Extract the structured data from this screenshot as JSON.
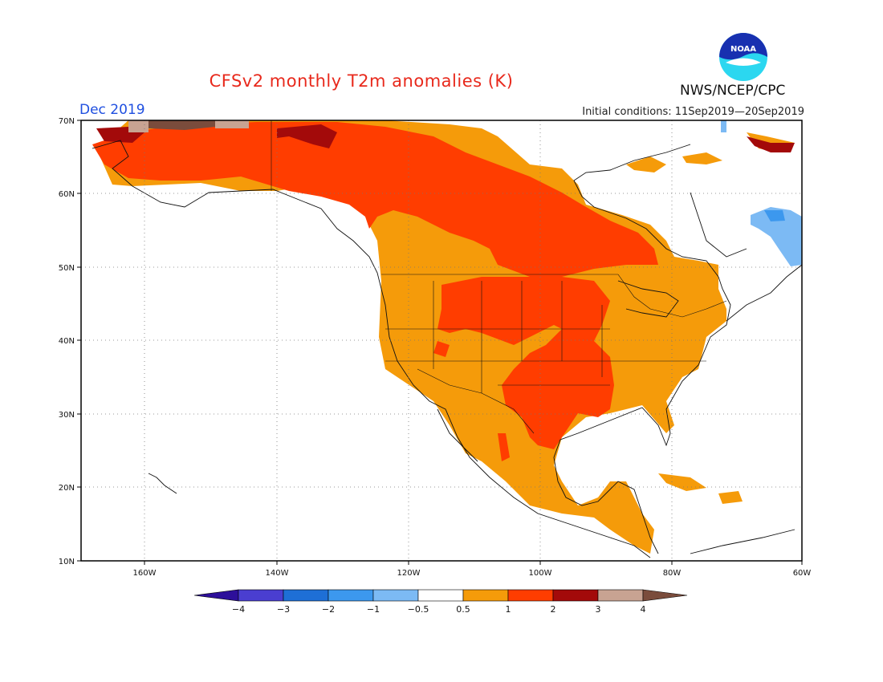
{
  "header": {
    "title": "CFSv2 monthly T2m anomalies (K)",
    "month": "Dec 2019",
    "initial_conditions": "Initial conditions: 11Sep2019—20Sep2019",
    "agency": "NWS/NCEP/CPC",
    "logo_text": "NOAA"
  },
  "axes": {
    "lat_labels": [
      "70N",
      "60N",
      "50N",
      "40N",
      "30N",
      "20N",
      "10N"
    ],
    "lon_labels": [
      "160W",
      "140W",
      "120W",
      "100W",
      "80W",
      "60W"
    ]
  },
  "colorbar": {
    "labels": [
      "−4",
      "−3",
      "−2",
      "−1",
      "−0.5",
      "0.5",
      "1",
      "2",
      "3",
      "4"
    ],
    "colors": [
      "#2d0f9a",
      "#4a3ed0",
      "#1e6fd6",
      "#3c98ee",
      "#7cbaf4",
      "#ffffff",
      "#f59b0a",
      "#ff3d00",
      "#a30a0a",
      "#c8a392",
      "#7a4c3c"
    ]
  },
  "regions": [
    {
      "name": "alaska-yukon",
      "category": "2"
    },
    {
      "name": "canadian-prairies-band",
      "category": "2"
    },
    {
      "name": "central-plains",
      "category": "2"
    },
    {
      "name": "texas-gulf",
      "category": "2"
    },
    {
      "name": "western-us",
      "category": "1"
    },
    {
      "name": "eastern-us",
      "category": "1"
    },
    {
      "name": "mexico",
      "category": "1"
    },
    {
      "name": "labrador-cold",
      "category": "-1"
    },
    {
      "name": "arctic-coast",
      "category": "3-4"
    }
  ]
}
